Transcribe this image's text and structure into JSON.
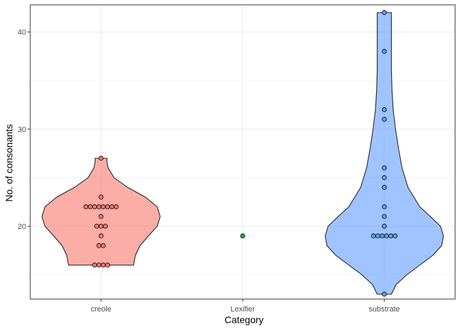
{
  "chart_data": {
    "type": "violin",
    "xlabel": "Category",
    "ylabel": "No. of consonants",
    "ylim": [
      12.5,
      42.8
    ],
    "y_ticks": [
      20,
      30,
      40
    ],
    "y_minor_ticks": [
      15,
      25,
      35
    ],
    "grid": true,
    "categories": [
      "creole",
      "Lexifier",
      "substrate"
    ],
    "series": [
      {
        "category": "creole",
        "color": "#F8766D",
        "violin_profile": [
          [
            16,
            0.55
          ],
          [
            17,
            0.58
          ],
          [
            18,
            0.66
          ],
          [
            19,
            0.8
          ],
          [
            20,
            0.95
          ],
          [
            21,
            1.0
          ],
          [
            22,
            0.95
          ],
          [
            23,
            0.75
          ],
          [
            24,
            0.45
          ],
          [
            25,
            0.22
          ],
          [
            26,
            0.12
          ],
          [
            26.6,
            0.1
          ],
          [
            27,
            0.1
          ]
        ],
        "points": [
          16,
          16,
          16,
          16,
          18,
          18,
          19,
          20,
          20,
          20,
          21,
          22,
          22,
          22,
          22,
          22,
          22,
          22,
          22,
          23,
          27
        ]
      },
      {
        "category": "Lexifier",
        "color": "#00BA38",
        "violin_profile": [],
        "points": [
          19
        ]
      },
      {
        "category": "substrate",
        "color": "#619CFF",
        "violin_profile": [
          [
            13,
            0.12
          ],
          [
            14,
            0.2
          ],
          [
            15,
            0.38
          ],
          [
            16,
            0.6
          ],
          [
            17,
            0.82
          ],
          [
            18,
            0.97
          ],
          [
            19,
            1.0
          ],
          [
            20,
            0.95
          ],
          [
            21,
            0.78
          ],
          [
            22,
            0.6
          ],
          [
            24,
            0.4
          ],
          [
            26,
            0.3
          ],
          [
            28,
            0.24
          ],
          [
            30,
            0.19
          ],
          [
            32,
            0.15
          ],
          [
            34,
            0.13
          ],
          [
            36,
            0.12
          ],
          [
            38,
            0.12
          ],
          [
            40,
            0.12
          ],
          [
            42,
            0.12
          ]
        ],
        "points": [
          13,
          19,
          19,
          19,
          19,
          19,
          19,
          20,
          21,
          22,
          24,
          25,
          26,
          31,
          32,
          38,
          42
        ]
      }
    ]
  }
}
